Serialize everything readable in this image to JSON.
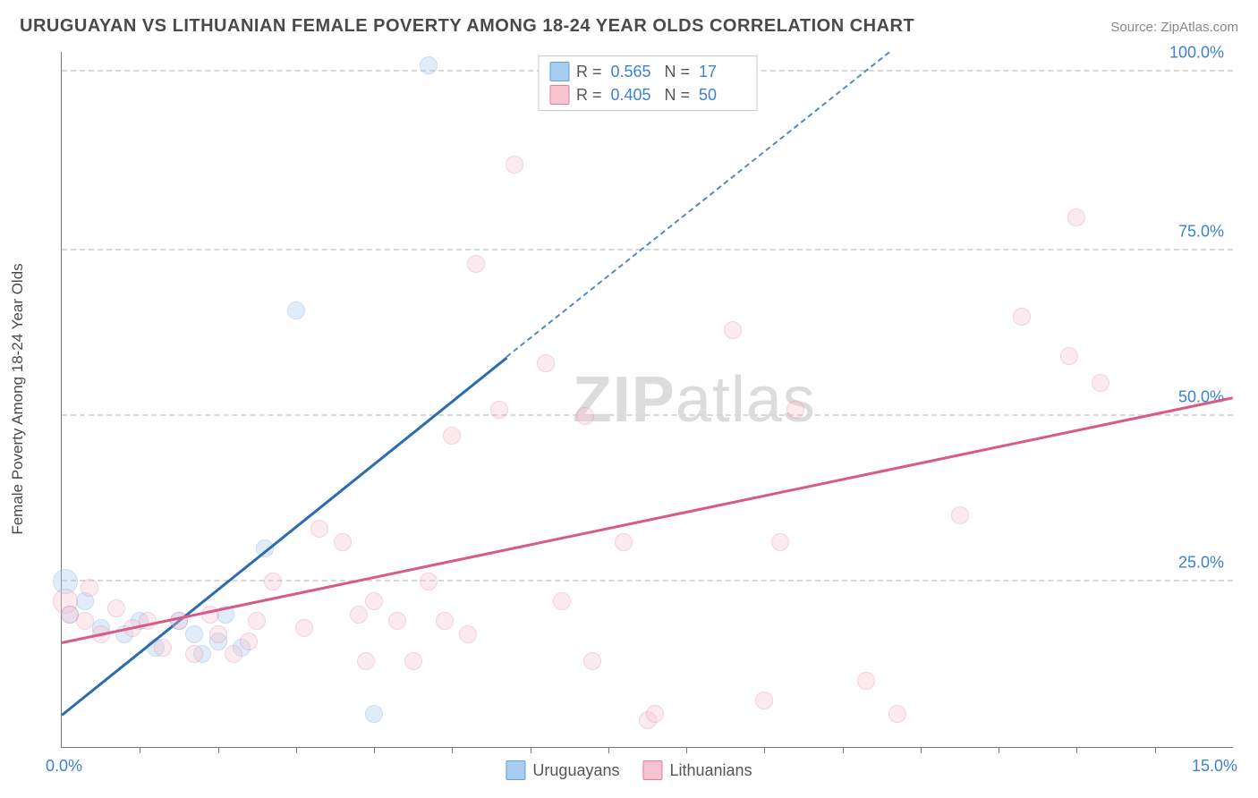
{
  "header": {
    "title": "URUGUAYAN VS LITHUANIAN FEMALE POVERTY AMONG 18-24 YEAR OLDS CORRELATION CHART",
    "source_prefix": "Source: ",
    "source_name": "ZipAtlas.com"
  },
  "chart": {
    "type": "scatter",
    "xlim": [
      0,
      15
    ],
    "ylim": [
      0,
      105
    ],
    "x_min_label": "0.0%",
    "x_max_label": "15.0%",
    "x_ticks": [
      1,
      2,
      3,
      4,
      5,
      6,
      7,
      8,
      9,
      10,
      11,
      12,
      13,
      14
    ],
    "y_gridlines": [
      25,
      50,
      75,
      102
    ],
    "y_tick_labels": {
      "25": "25.0%",
      "50": "50.0%",
      "75": "75.0%",
      "102": "100.0%"
    },
    "y_label": "Female Poverty Among 18-24 Year Olds",
    "background_color": "#ffffff",
    "grid_color": "#d8d8d8",
    "axis_color": "#777777",
    "tick_label_color": "#3b82d6",
    "marker_radius": 10,
    "marker_radius_large": 14,
    "marker_opacity": 0.35
  },
  "series": [
    {
      "id": "uruguayans",
      "label": "Uruguayans",
      "fill_color": "#a8cdf0",
      "stroke_color": "#5e9fd9",
      "line_color": "#2b6cb0",
      "R": "0.565",
      "N": "17",
      "trend": {
        "x1": 0,
        "y1": 5,
        "x2": 5.7,
        "y2": 59,
        "extend_to_x": 10.6,
        "extend_to_y": 105
      },
      "points": [
        {
          "x": 0.05,
          "y": 25,
          "r": 14
        },
        {
          "x": 0.1,
          "y": 20
        },
        {
          "x": 0.3,
          "y": 22
        },
        {
          "x": 0.5,
          "y": 18
        },
        {
          "x": 0.8,
          "y": 17
        },
        {
          "x": 1.0,
          "y": 19
        },
        {
          "x": 1.2,
          "y": 15
        },
        {
          "x": 1.5,
          "y": 19
        },
        {
          "x": 1.7,
          "y": 17
        },
        {
          "x": 1.8,
          "y": 14
        },
        {
          "x": 2.1,
          "y": 20
        },
        {
          "x": 2.3,
          "y": 15
        },
        {
          "x": 2.6,
          "y": 30
        },
        {
          "x": 3.0,
          "y": 66
        },
        {
          "x": 4.0,
          "y": 5
        },
        {
          "x": 4.7,
          "y": 103
        },
        {
          "x": 2.0,
          "y": 16
        }
      ]
    },
    {
      "id": "lithuanians",
      "label": "Lithuanians",
      "fill_color": "#f6c4d0",
      "stroke_color": "#e37da0",
      "line_color": "#d85a86",
      "R": "0.405",
      "N": "50",
      "trend": {
        "x1": 0,
        "y1": 16,
        "x2": 15,
        "y2": 53
      },
      "points": [
        {
          "x": 0.05,
          "y": 22,
          "r": 14
        },
        {
          "x": 0.1,
          "y": 20
        },
        {
          "x": 0.3,
          "y": 19
        },
        {
          "x": 0.35,
          "y": 24
        },
        {
          "x": 0.5,
          "y": 17
        },
        {
          "x": 0.7,
          "y": 21
        },
        {
          "x": 0.9,
          "y": 18
        },
        {
          "x": 1.1,
          "y": 19
        },
        {
          "x": 1.3,
          "y": 15
        },
        {
          "x": 1.5,
          "y": 19
        },
        {
          "x": 1.7,
          "y": 14
        },
        {
          "x": 1.9,
          "y": 20
        },
        {
          "x": 2.0,
          "y": 17
        },
        {
          "x": 2.2,
          "y": 14
        },
        {
          "x": 2.4,
          "y": 16
        },
        {
          "x": 2.7,
          "y": 25
        },
        {
          "x": 3.1,
          "y": 18
        },
        {
          "x": 3.3,
          "y": 33
        },
        {
          "x": 3.6,
          "y": 31
        },
        {
          "x": 3.9,
          "y": 13
        },
        {
          "x": 4.0,
          "y": 22
        },
        {
          "x": 4.3,
          "y": 19
        },
        {
          "x": 4.5,
          "y": 13
        },
        {
          "x": 4.7,
          "y": 25
        },
        {
          "x": 4.9,
          "y": 19
        },
        {
          "x": 5.0,
          "y": 47
        },
        {
          "x": 5.2,
          "y": 17
        },
        {
          "x": 5.3,
          "y": 73
        },
        {
          "x": 5.6,
          "y": 51
        },
        {
          "x": 5.8,
          "y": 88
        },
        {
          "x": 6.2,
          "y": 58
        },
        {
          "x": 6.4,
          "y": 22
        },
        {
          "x": 6.7,
          "y": 50
        },
        {
          "x": 6.8,
          "y": 13
        },
        {
          "x": 7.2,
          "y": 31
        },
        {
          "x": 7.5,
          "y": 4
        },
        {
          "x": 7.6,
          "y": 5
        },
        {
          "x": 8.6,
          "y": 63
        },
        {
          "x": 9.0,
          "y": 7
        },
        {
          "x": 9.2,
          "y": 31
        },
        {
          "x": 9.4,
          "y": 51
        },
        {
          "x": 10.3,
          "y": 10
        },
        {
          "x": 10.7,
          "y": 5
        },
        {
          "x": 11.5,
          "y": 35
        },
        {
          "x": 12.3,
          "y": 65
        },
        {
          "x": 12.9,
          "y": 59
        },
        {
          "x": 13.3,
          "y": 55
        },
        {
          "x": 13.0,
          "y": 80
        },
        {
          "x": 2.5,
          "y": 19
        },
        {
          "x": 3.8,
          "y": 20
        }
      ]
    }
  ],
  "legend_top": {
    "rows": [
      {
        "swatch_fill": "#a8cdf0",
        "swatch_stroke": "#5e9fd9",
        "r_label": "R =",
        "r_val": "0.565",
        "n_label": "N =",
        "n_val": "17"
      },
      {
        "swatch_fill": "#f6c4d0",
        "swatch_stroke": "#e37da0",
        "r_label": "R =",
        "r_val": "0.405",
        "n_label": "N =",
        "n_val": "50"
      }
    ]
  },
  "legend_bottom": {
    "items": [
      {
        "swatch_fill": "#a8cdf0",
        "swatch_stroke": "#5e9fd9",
        "label": "Uruguayans"
      },
      {
        "swatch_fill": "#f6c4d0",
        "swatch_stroke": "#e37da0",
        "label": "Lithuanians"
      }
    ]
  },
  "watermark": {
    "text_a": "ZIP",
    "text_b": "atlas"
  }
}
